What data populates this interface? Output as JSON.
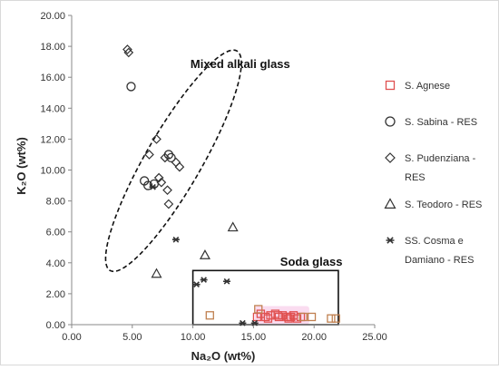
{
  "chart_data": {
    "type": "scatter",
    "title": "",
    "xlabel": "Na₂O (wt%)",
    "ylabel": "K₂O (wt%)",
    "xlim": [
      0,
      25
    ],
    "ylim": [
      0,
      20
    ],
    "x_ticks": [
      "0.00",
      "5.00",
      "10.00",
      "15.00",
      "20.00",
      "25.00"
    ],
    "y_ticks": [
      "0.00",
      "2.00",
      "4.00",
      "6.00",
      "8.00",
      "10.00",
      "12.00",
      "14.00",
      "16.00",
      "18.00",
      "20.00"
    ],
    "grid": false,
    "legend_placement": "right",
    "annotations": [
      {
        "text": "Mixed alkali glass",
        "x": 9.8,
        "y": 16.6
      },
      {
        "text": "Soda glass",
        "x": 17.2,
        "y": 3.8
      }
    ],
    "regions": [
      {
        "shape": "ellipse",
        "style": "dashed",
        "cx": 8.4,
        "cy": 10.6,
        "rx": 2.3,
        "ry": 8.2,
        "rotation_deg": 30
      },
      {
        "shape": "rectangle",
        "style": "solid",
        "x0": 10,
        "x1": 22,
        "y0": 0,
        "y1": 3.5
      }
    ],
    "series": [
      {
        "name": "S. Agnese",
        "marker": "square",
        "color": "#e05050",
        "x": [
          15.3,
          15.6,
          16.0,
          16.4,
          16.8,
          17.1,
          17.4,
          17.8,
          18.1,
          18.3,
          18.6,
          18.9,
          16.2,
          17.0,
          17.9
        ],
        "y": [
          0.5,
          0.7,
          0.5,
          0.6,
          0.7,
          0.5,
          0.6,
          0.5,
          0.5,
          0.6,
          0.4,
          0.5,
          0.4,
          0.6,
          0.4
        ]
      },
      {
        "name": "S. Sabina - RES",
        "marker": "circle",
        "color": "#333333",
        "x": [
          4.9,
          6.0,
          6.3,
          6.8,
          8.0,
          8.2
        ],
        "y": [
          15.4,
          9.3,
          9.0,
          9.1,
          11.0,
          10.8
        ]
      },
      {
        "name": "S. Pudenziana - RES",
        "marker": "diamond",
        "color": "#333333",
        "x": [
          4.6,
          4.7,
          6.4,
          7.0,
          7.2,
          7.4,
          7.7,
          7.9,
          8.0,
          8.6,
          8.9
        ],
        "y": [
          17.8,
          17.6,
          11.0,
          12.0,
          9.5,
          9.2,
          10.8,
          8.7,
          7.8,
          10.5,
          10.2
        ]
      },
      {
        "name": "S. Teodoro - RES",
        "marker": "triangle",
        "color": "#333333",
        "x": [
          7.0,
          11.0,
          13.3
        ],
        "y": [
          3.3,
          4.5,
          6.3
        ]
      },
      {
        "name": "SS. Cosma e Damiano - RES",
        "marker": "star",
        "color": "#333333",
        "x": [
          6.7,
          8.6,
          10.3,
          10.9,
          12.8,
          14.1,
          15.1
        ],
        "y": [
          8.9,
          5.5,
          2.6,
          2.9,
          2.8,
          0.1,
          0.1
        ]
      },
      {
        "name": "",
        "marker": "square",
        "color": "#c08050",
        "x": [
          11.4,
          15.4,
          19.1,
          19.8,
          21.4,
          21.8
        ],
        "y": [
          0.6,
          1.0,
          0.5,
          0.5,
          0.4,
          0.4
        ]
      }
    ]
  },
  "legend": {
    "items": [
      {
        "label_lines": [
          "S. Agnese"
        ],
        "marker": "square",
        "color": "#e05050"
      },
      {
        "label_lines": [
          "S. Sabina - RES"
        ],
        "marker": "circle",
        "color": "#333333"
      },
      {
        "label_lines": [
          "S. Pudenziana -",
          "RES"
        ],
        "marker": "diamond",
        "color": "#333333"
      },
      {
        "label_lines": [
          "S. Teodoro - RES"
        ],
        "marker": "triangle",
        "color": "#333333"
      },
      {
        "label_lines": [
          "SS. Cosma e",
          "Damiano - RES"
        ],
        "marker": "star",
        "color": "#333333"
      }
    ]
  },
  "colors": {
    "background": "#ffffff",
    "frame": "#d9d9d9",
    "axis": "#888888",
    "soda_highlight": "#f7c5e6"
  }
}
